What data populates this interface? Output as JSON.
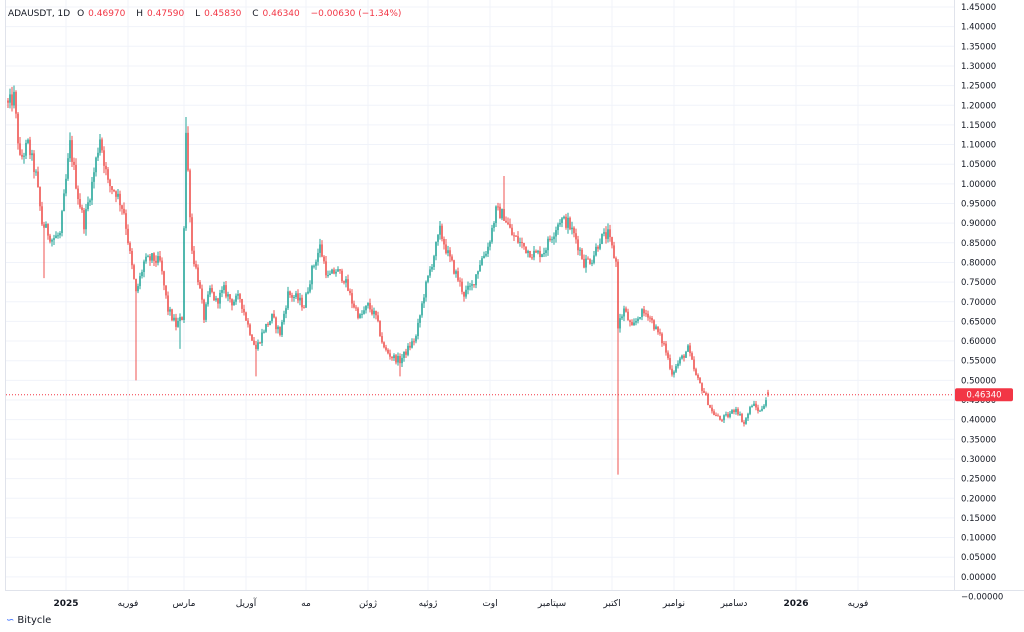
{
  "legend": {
    "symbol": "ADAUSDT, 1D",
    "open_label": "O",
    "open": "0.46970",
    "high_label": "H",
    "high": "0.47590",
    "low_label": "L",
    "low": "0.45830",
    "close_label": "C",
    "close": "0.46340",
    "change": "−0.00630 (−1.34%)"
  },
  "footer": {
    "brand": "Bitycle",
    "logo_icon": "bitycle-logo-icon"
  },
  "colors": {
    "up": "#26a69a",
    "down": "#ef5350",
    "price_tag": "#f23645",
    "grid": "#f0f3fa",
    "text": "#131722"
  },
  "chart_data": {
    "type": "candlestick",
    "ylim": [
      -0.025,
      1.46
    ],
    "y_ticks": [
      "1.45000",
      "1.40000",
      "1.35000",
      "1.30000",
      "1.25000",
      "1.20000",
      "1.15000",
      "1.10000",
      "1.05000",
      "1.00000",
      "0.95000",
      "0.90000",
      "0.85000",
      "0.80000",
      "0.75000",
      "0.70000",
      "0.65000",
      "0.60000",
      "0.55000",
      "0.50000",
      "0.45000",
      "0.40000",
      "0.35000",
      "0.30000",
      "0.25000",
      "0.20000",
      "0.15000",
      "0.10000",
      "0.05000",
      "0.00000",
      "−0.00000"
    ],
    "y_tick_values": [
      1.45,
      1.4,
      1.35,
      1.3,
      1.25,
      1.2,
      1.15,
      1.1,
      1.05,
      1.0,
      0.95,
      0.9,
      0.85,
      0.8,
      0.75,
      0.7,
      0.65,
      0.6,
      0.55,
      0.5,
      0.45,
      0.4,
      0.35,
      0.3,
      0.25,
      0.2,
      0.15,
      0.1,
      0.05,
      0.0,
      -0.0
    ],
    "x_ticks": [
      {
        "label": "2025",
        "day": 31
      },
      {
        "label": "فوریه",
        "day": 62
      },
      {
        "label": "مارس",
        "day": 90
      },
      {
        "label": "آوریل",
        "day": 121
      },
      {
        "label": "مه",
        "day": 151
      },
      {
        "label": "ژوئن",
        "day": 182
      },
      {
        "label": "ژوئیه",
        "day": 212
      },
      {
        "label": "اوت",
        "day": 243
      },
      {
        "label": "سپتامبر",
        "day": 274
      },
      {
        "label": "اکتبر",
        "day": 304
      },
      {
        "label": "نوامبر",
        "day": 335
      },
      {
        "label": "دسامبر",
        "day": 365
      },
      {
        "label": "2026",
        "day": 396
      },
      {
        "label": "فوریه",
        "day": 427
      }
    ],
    "x_range_days": [
      2,
      461
    ],
    "last_price": 0.4634,
    "last_price_label": "0.46340",
    "anchors": [
      {
        "d": 2,
        "p": 1.2
      },
      {
        "d": 5,
        "p": 1.22
      },
      {
        "d": 8,
        "p": 1.06
      },
      {
        "d": 12,
        "p": 1.1
      },
      {
        "d": 16,
        "p": 1.02
      },
      {
        "d": 19,
        "p": 0.9
      },
      {
        "d": 24,
        "p": 0.86
      },
      {
        "d": 28,
        "p": 0.87
      },
      {
        "d": 33,
        "p": 1.1
      },
      {
        "d": 37,
        "p": 0.97
      },
      {
        "d": 40,
        "p": 0.9
      },
      {
        "d": 44,
        "p": 1.0
      },
      {
        "d": 48,
        "p": 1.12
      },
      {
        "d": 52,
        "p": 1.0
      },
      {
        "d": 56,
        "p": 0.98
      },
      {
        "d": 60,
        "p": 0.93
      },
      {
        "d": 63,
        "p": 0.82
      },
      {
        "d": 66,
        "p": 0.72
      },
      {
        "d": 70,
        "p": 0.8
      },
      {
        "d": 74,
        "p": 0.81
      },
      {
        "d": 78,
        "p": 0.8
      },
      {
        "d": 82,
        "p": 0.68
      },
      {
        "d": 86,
        "p": 0.64
      },
      {
        "d": 89,
        "p": 0.66
      },
      {
        "d": 91,
        "p": 1.13
      },
      {
        "d": 94,
        "p": 0.83
      },
      {
        "d": 97,
        "p": 0.76
      },
      {
        "d": 100,
        "p": 0.66
      },
      {
        "d": 103,
        "p": 0.73
      },
      {
        "d": 106,
        "p": 0.7
      },
      {
        "d": 110,
        "p": 0.73
      },
      {
        "d": 114,
        "p": 0.7
      },
      {
        "d": 118,
        "p": 0.71
      },
      {
        "d": 122,
        "p": 0.64
      },
      {
        "d": 126,
        "p": 0.58
      },
      {
        "d": 130,
        "p": 0.63
      },
      {
        "d": 134,
        "p": 0.66
      },
      {
        "d": 138,
        "p": 0.62
      },
      {
        "d": 142,
        "p": 0.72
      },
      {
        "d": 146,
        "p": 0.71
      },
      {
        "d": 150,
        "p": 0.69
      },
      {
        "d": 154,
        "p": 0.78
      },
      {
        "d": 158,
        "p": 0.84
      },
      {
        "d": 162,
        "p": 0.76
      },
      {
        "d": 166,
        "p": 0.78
      },
      {
        "d": 170,
        "p": 0.76
      },
      {
        "d": 174,
        "p": 0.7
      },
      {
        "d": 178,
        "p": 0.66
      },
      {
        "d": 182,
        "p": 0.69
      },
      {
        "d": 186,
        "p": 0.66
      },
      {
        "d": 190,
        "p": 0.58
      },
      {
        "d": 194,
        "p": 0.56
      },
      {
        "d": 198,
        "p": 0.55
      },
      {
        "d": 202,
        "p": 0.58
      },
      {
        "d": 206,
        "p": 0.61
      },
      {
        "d": 210,
        "p": 0.72
      },
      {
        "d": 214,
        "p": 0.8
      },
      {
        "d": 218,
        "p": 0.88
      },
      {
        "d": 222,
        "p": 0.82
      },
      {
        "d": 226,
        "p": 0.77
      },
      {
        "d": 230,
        "p": 0.72
      },
      {
        "d": 234,
        "p": 0.74
      },
      {
        "d": 238,
        "p": 0.8
      },
      {
        "d": 242,
        "p": 0.84
      },
      {
        "d": 246,
        "p": 0.93
      },
      {
        "d": 250,
        "p": 0.92
      },
      {
        "d": 254,
        "p": 0.87
      },
      {
        "d": 258,
        "p": 0.85
      },
      {
        "d": 262,
        "p": 0.83
      },
      {
        "d": 266,
        "p": 0.82
      },
      {
        "d": 270,
        "p": 0.83
      },
      {
        "d": 274,
        "p": 0.87
      },
      {
        "d": 278,
        "p": 0.91
      },
      {
        "d": 282,
        "p": 0.9
      },
      {
        "d": 286,
        "p": 0.86
      },
      {
        "d": 290,
        "p": 0.8
      },
      {
        "d": 294,
        "p": 0.81
      },
      {
        "d": 298,
        "p": 0.86
      },
      {
        "d": 302,
        "p": 0.87
      },
      {
        "d": 306,
        "p": 0.8
      },
      {
        "d": 307,
        "p": 0.64
      },
      {
        "d": 310,
        "p": 0.68
      },
      {
        "d": 314,
        "p": 0.63
      },
      {
        "d": 318,
        "p": 0.67
      },
      {
        "d": 322,
        "p": 0.67
      },
      {
        "d": 326,
        "p": 0.63
      },
      {
        "d": 330,
        "p": 0.59
      },
      {
        "d": 334,
        "p": 0.52
      },
      {
        "d": 338,
        "p": 0.55
      },
      {
        "d": 342,
        "p": 0.58
      },
      {
        "d": 346,
        "p": 0.51
      },
      {
        "d": 350,
        "p": 0.47
      },
      {
        "d": 354,
        "p": 0.42
      },
      {
        "d": 358,
        "p": 0.4
      },
      {
        "d": 362,
        "p": 0.41
      },
      {
        "d": 366,
        "p": 0.43
      },
      {
        "d": 370,
        "p": 0.39
      },
      {
        "d": 374,
        "p": 0.44
      },
      {
        "d": 378,
        "p": 0.42
      },
      {
        "d": 382,
        "p": 0.4634
      }
    ],
    "wick_events": [
      {
        "d": 19,
        "low": 0.9
      },
      {
        "d": 20,
        "low": 0.76
      },
      {
        "d": 66,
        "low": 0.5
      },
      {
        "d": 88,
        "low": 0.58
      },
      {
        "d": 91,
        "high": 1.17
      },
      {
        "d": 126,
        "low": 0.51
      },
      {
        "d": 198,
        "low": 0.51
      },
      {
        "d": 250,
        "high": 1.02
      },
      {
        "d": 307,
        "low": 0.26
      }
    ]
  }
}
